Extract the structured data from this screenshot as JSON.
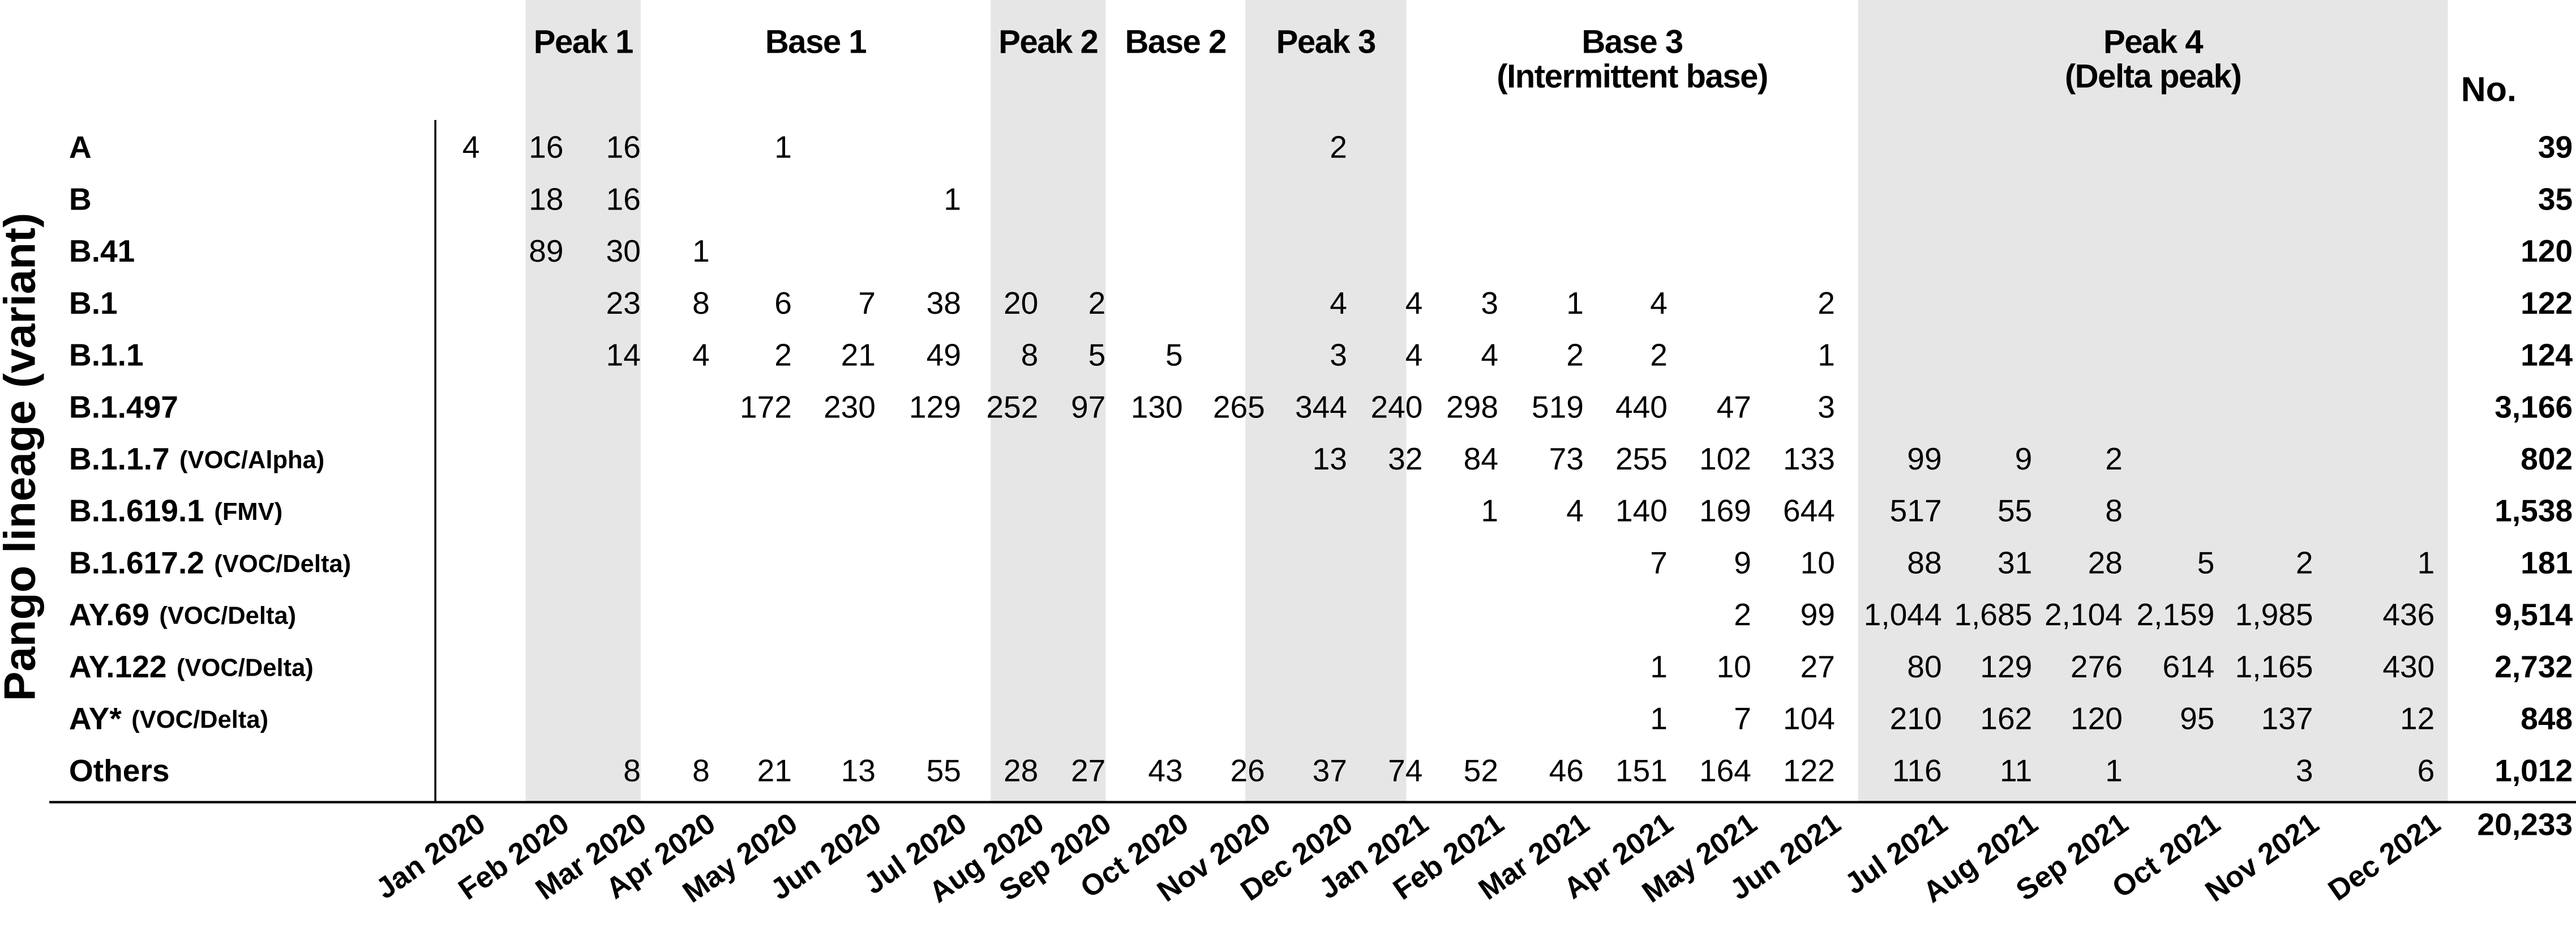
{
  "y_label": "Pango lineage (variant)",
  "total_header": "No.",
  "grand_total": "20,233",
  "periods": [
    {
      "title": "Peak 1"
    },
    {
      "title": "Base 1"
    },
    {
      "title": "Peak 2"
    },
    {
      "title": "Base 2"
    },
    {
      "title": "Peak 3"
    },
    {
      "title": "Base 3",
      "subtitle": "(Intermittent base)"
    },
    {
      "title": "Peak 4",
      "subtitle": "(Delta peak)"
    }
  ],
  "months": [
    "Jan 2020",
    "Feb 2020",
    "Mar 2020",
    "Apr 2020",
    "May 2020",
    "Jun 2020",
    "Jul 2020",
    "Aug 2020",
    "Sep 2020",
    "Oct 2020",
    "Nov 2020",
    "Dec 2020",
    "Jan 2021",
    "Feb 2021",
    "Mar 2021",
    "Apr 2021",
    "May 2021",
    "Jun 2021",
    "Jul 2021",
    "Aug 2021",
    "Sep 2021",
    "Oct 2021",
    "Nov 2021",
    "Dec 2021"
  ],
  "rows": [
    {
      "name": "A",
      "cells": [
        "4",
        "16",
        "16",
        null,
        "1",
        null,
        null,
        null,
        null,
        null,
        null,
        "2",
        null,
        null,
        null,
        null,
        null,
        null,
        null,
        null,
        null,
        null,
        null,
        null
      ],
      "total": "39"
    },
    {
      "name": "B",
      "cells": [
        null,
        "18",
        "16",
        null,
        null,
        null,
        "1",
        null,
        null,
        null,
        null,
        null,
        null,
        null,
        null,
        null,
        null,
        null,
        null,
        null,
        null,
        null,
        null,
        null
      ],
      "total": "35"
    },
    {
      "name": "B.41",
      "cells": [
        null,
        "89",
        "30",
        "1",
        null,
        null,
        null,
        null,
        null,
        null,
        null,
        null,
        null,
        null,
        null,
        null,
        null,
        null,
        null,
        null,
        null,
        null,
        null,
        null
      ],
      "total": "120"
    },
    {
      "name": "B.1",
      "cells": [
        null,
        null,
        "23",
        "8",
        "6",
        "7",
        "38",
        "20",
        "2",
        null,
        null,
        "4",
        "4",
        "3",
        "1",
        "4",
        null,
        "2",
        null,
        null,
        null,
        null,
        null,
        null
      ],
      "total": "122"
    },
    {
      "name": "B.1.1",
      "cells": [
        null,
        null,
        "14",
        "4",
        "2",
        "21",
        "49",
        "8",
        "5",
        "5",
        null,
        "3",
        "4",
        "4",
        "2",
        "2",
        null,
        "1",
        null,
        null,
        null,
        null,
        null,
        null
      ],
      "total": "124"
    },
    {
      "name": "B.1.497",
      "cells": [
        null,
        null,
        null,
        null,
        "172",
        "230",
        "129",
        "252",
        "97",
        "130",
        "265",
        "344",
        "240",
        "298",
        "519",
        "440",
        "47",
        "3",
        null,
        null,
        null,
        null,
        null,
        null
      ],
      "total": "3,166"
    },
    {
      "name": "B.1.1.7",
      "note": "(VOC/Alpha)",
      "cells": [
        null,
        null,
        null,
        null,
        null,
        null,
        null,
        null,
        null,
        null,
        null,
        "13",
        "32",
        "84",
        "73",
        "255",
        "102",
        "133",
        "99",
        "9",
        "2",
        null,
        null,
        null
      ],
      "total": "802"
    },
    {
      "name": "B.1.619.1",
      "note": "(FMV)",
      "cells": [
        null,
        null,
        null,
        null,
        null,
        null,
        null,
        null,
        null,
        null,
        null,
        null,
        null,
        "1",
        "4",
        "140",
        "169",
        "644",
        "517",
        "55",
        "8",
        null,
        null,
        null
      ],
      "total": "1,538"
    },
    {
      "name": "B.1.617.2",
      "note": "(VOC/Delta)",
      "cells": [
        null,
        null,
        null,
        null,
        null,
        null,
        null,
        null,
        null,
        null,
        null,
        null,
        null,
        null,
        null,
        "7",
        "9",
        "10",
        "88",
        "31",
        "28",
        "5",
        "2",
        "1"
      ],
      "total": "181"
    },
    {
      "name": "AY.69",
      "note": "(VOC/Delta)",
      "cells": [
        null,
        null,
        null,
        null,
        null,
        null,
        null,
        null,
        null,
        null,
        null,
        null,
        null,
        null,
        null,
        null,
        "2",
        "99",
        "1,044",
        "1,685",
        "2,104",
        "2,159",
        "1,985",
        "436"
      ],
      "total": "9,514"
    },
    {
      "name": "AY.122",
      "note": "(VOC/Delta)",
      "cells": [
        null,
        null,
        null,
        null,
        null,
        null,
        null,
        null,
        null,
        null,
        null,
        null,
        null,
        null,
        null,
        "1",
        "10",
        "27",
        "80",
        "129",
        "276",
        "614",
        "1,165",
        "430"
      ],
      "total": "2,732"
    },
    {
      "name": "AY*",
      "note": "(VOC/Delta)",
      "cells": [
        null,
        null,
        null,
        null,
        null,
        null,
        null,
        null,
        null,
        null,
        null,
        null,
        null,
        null,
        null,
        "1",
        "7",
        "104",
        "210",
        "162",
        "120",
        "95",
        "137",
        "12"
      ],
      "total": "848"
    },
    {
      "name": "Others",
      "cells": [
        null,
        null,
        "8",
        "8",
        "21",
        "13",
        "55",
        "28",
        "27",
        "43",
        "26",
        "37",
        "74",
        "52",
        "46",
        "151",
        "164",
        "122",
        "116",
        "11",
        "1",
        null,
        "3",
        "6"
      ],
      "total": "1,012"
    }
  ]
}
